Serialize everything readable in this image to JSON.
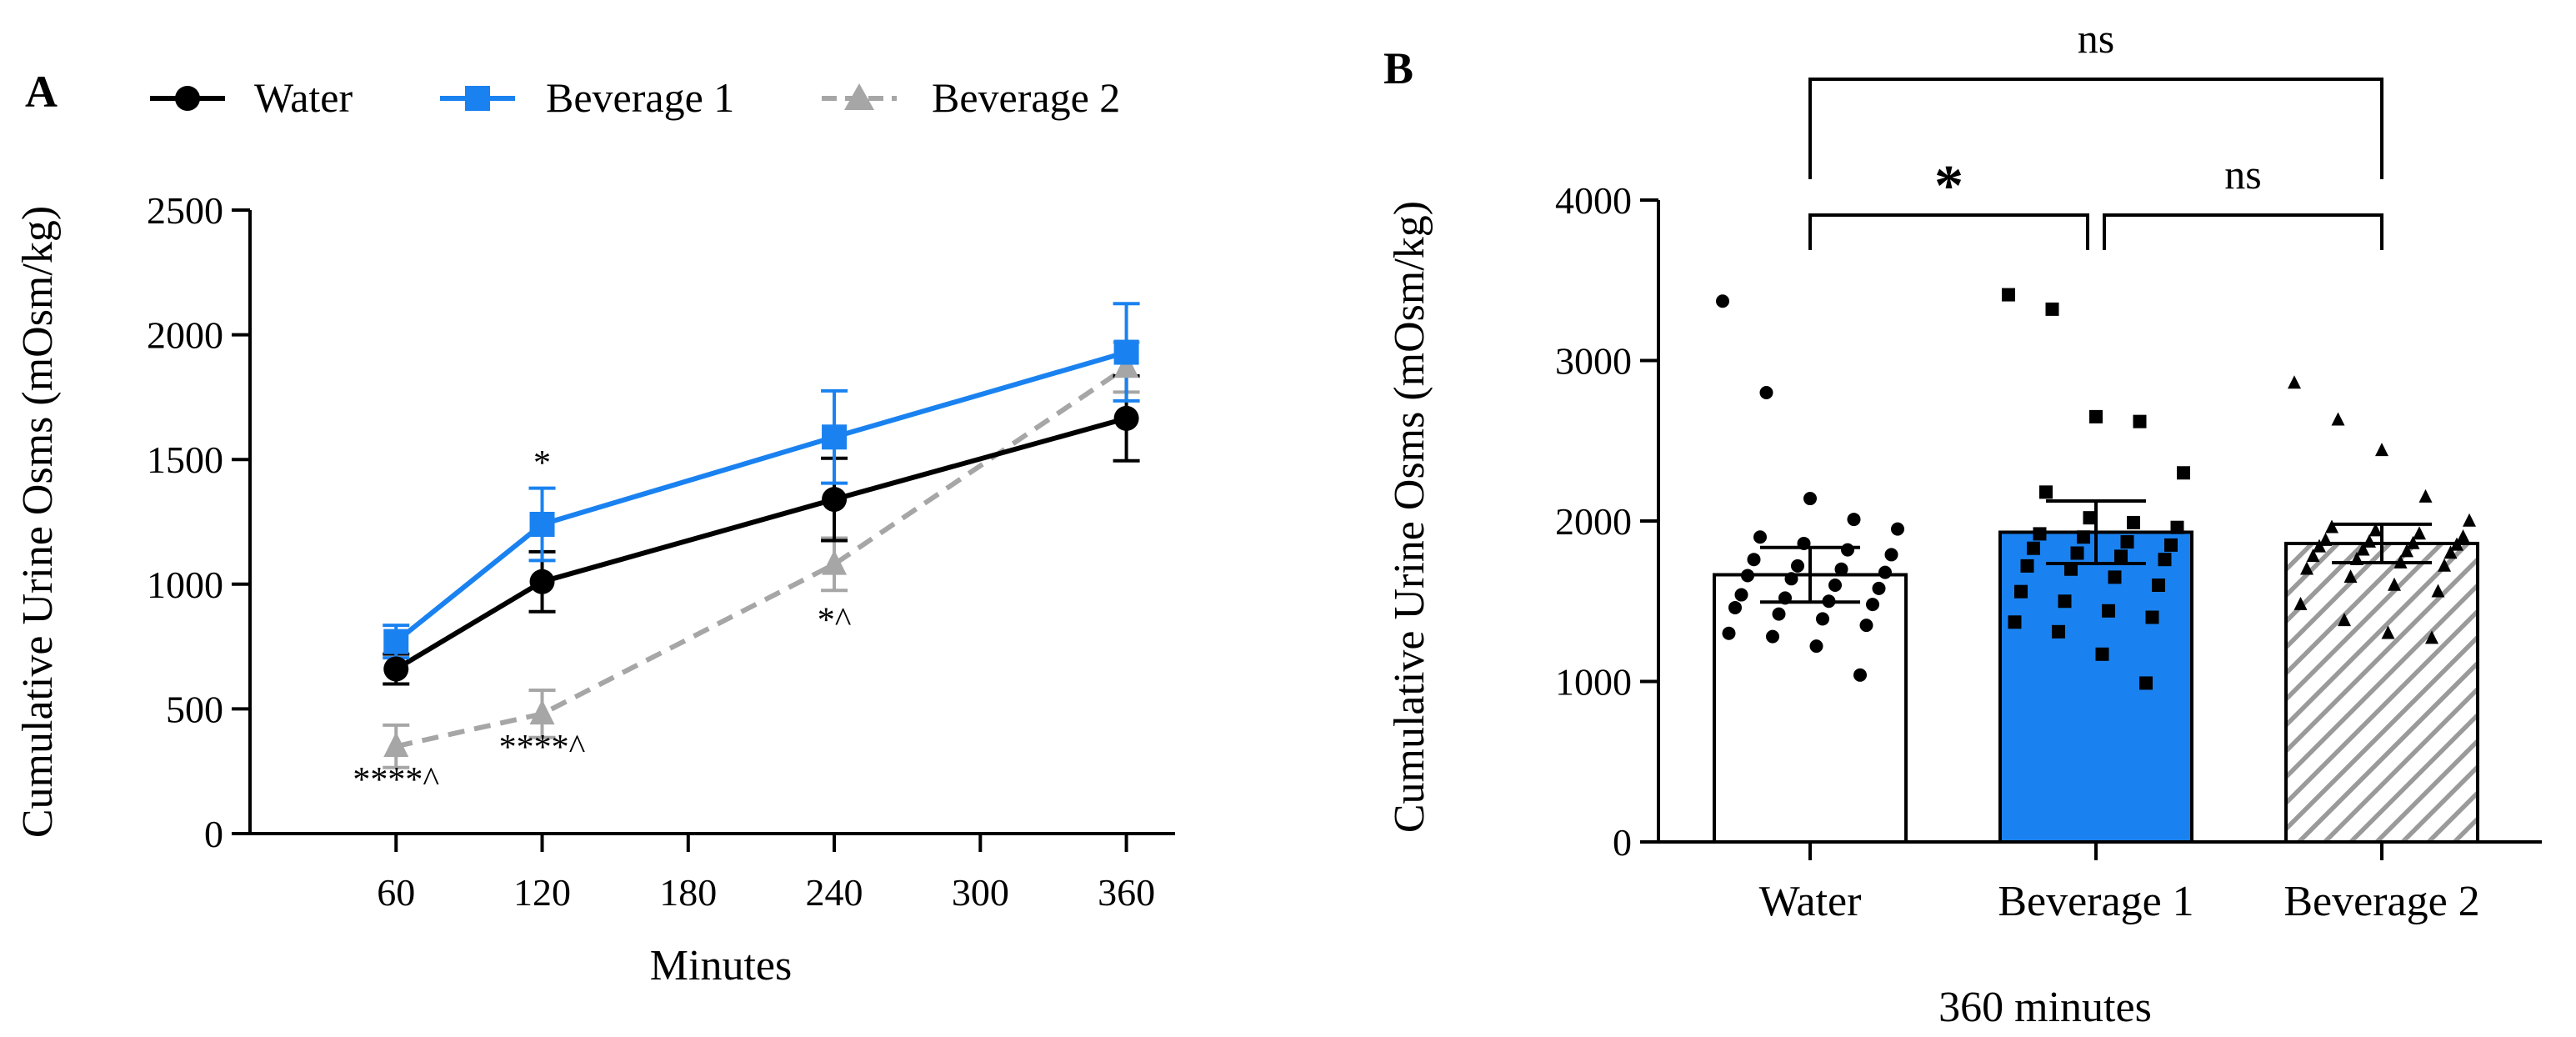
{
  "colors": {
    "water": "#000000",
    "beverage1": "#1a82f0",
    "beverage2": "#a6a6a6",
    "bar_edge": "#000000"
  },
  "chart_data": [
    {
      "panel": "A",
      "type": "line",
      "xlabel": "Minutes",
      "ylabel": "Cumulative Urine Osms (mOsm/kg)",
      "xlim": [
        0,
        380
      ],
      "ylim": [
        0,
        2500
      ],
      "xticks": [
        60,
        120,
        180,
        240,
        300,
        360
      ],
      "yticks": [
        0,
        500,
        1000,
        1500,
        2000,
        2500
      ],
      "legend_position": "top",
      "series": [
        {
          "name": "Water",
          "marker": "circle",
          "style": "solid",
          "color": "#000000",
          "x": [
            60,
            120,
            240,
            360
          ],
          "y": [
            660,
            1010,
            1340,
            1665
          ],
          "err": [
            60,
            120,
            165,
            170
          ]
        },
        {
          "name": "Beverage 1",
          "marker": "square",
          "style": "solid",
          "color": "#1a82f0",
          "x": [
            60,
            120,
            240,
            360
          ],
          "y": [
            770,
            1240,
            1590,
            1930
          ],
          "err": [
            65,
            145,
            185,
            195
          ]
        },
        {
          "name": "Beverage 2",
          "marker": "triangle",
          "style": "dashed",
          "color": "#a6a6a6",
          "x": [
            60,
            120,
            240,
            360
          ],
          "y": [
            350,
            480,
            1080,
            1870
          ],
          "err": [
            85,
            95,
            105,
            100
          ]
        }
      ],
      "annotations": [
        {
          "x": 60,
          "y": 170,
          "text": "****^"
        },
        {
          "x": 120,
          "y": 300,
          "text": "****^"
        },
        {
          "x": 120,
          "y": 1440,
          "text": "*"
        },
        {
          "x": 240,
          "y": 810,
          "text": "*^"
        }
      ]
    },
    {
      "panel": "B",
      "type": "bar",
      "xlabel": "360 minutes",
      "ylabel": "Cumulative Urine Osms (mOsm/kg)",
      "categories": [
        "Water",
        "Beverage 1",
        "Beverage 2"
      ],
      "values": [
        1665,
        1930,
        1860
      ],
      "errors": [
        170,
        195,
        120
      ],
      "ylim": [
        0,
        4000
      ],
      "yticks": [
        0,
        1000,
        2000,
        3000,
        4000
      ],
      "fills": [
        "white",
        "#1a82f0",
        "hatched"
      ],
      "markers": [
        "circle",
        "square",
        "triangle"
      ],
      "points": [
        [
          3370,
          2800,
          2140,
          2010,
          1950,
          1900,
          1860,
          1820,
          1790,
          1760,
          1720,
          1700,
          1680,
          1660,
          1640,
          1600,
          1580,
          1540,
          1520,
          1500,
          1480,
          1460,
          1420,
          1390,
          1350,
          1300,
          1280,
          1220,
          1040
        ],
        [
          3410,
          3320,
          2650,
          2620,
          2300,
          2180,
          2020,
          1990,
          1960,
          1920,
          1900,
          1870,
          1850,
          1830,
          1800,
          1780,
          1760,
          1720,
          1700,
          1650,
          1600,
          1560,
          1500,
          1440,
          1400,
          1370,
          1310,
          1170,
          990
        ],
        [
          2860,
          2630,
          2440,
          2150,
          2000,
          1960,
          1940,
          1920,
          1900,
          1880,
          1870,
          1860,
          1850,
          1840,
          1820,
          1810,
          1800,
          1780,
          1760,
          1740,
          1720,
          1700,
          1650,
          1600,
          1560,
          1480,
          1380,
          1300,
          1270
        ]
      ],
      "comparisons": [
        {
          "from": 0,
          "to": 2,
          "label": "ns"
        },
        {
          "from": 0,
          "to": 1,
          "label": "*"
        },
        {
          "from": 1,
          "to": 2,
          "label": "ns"
        }
      ]
    }
  ]
}
